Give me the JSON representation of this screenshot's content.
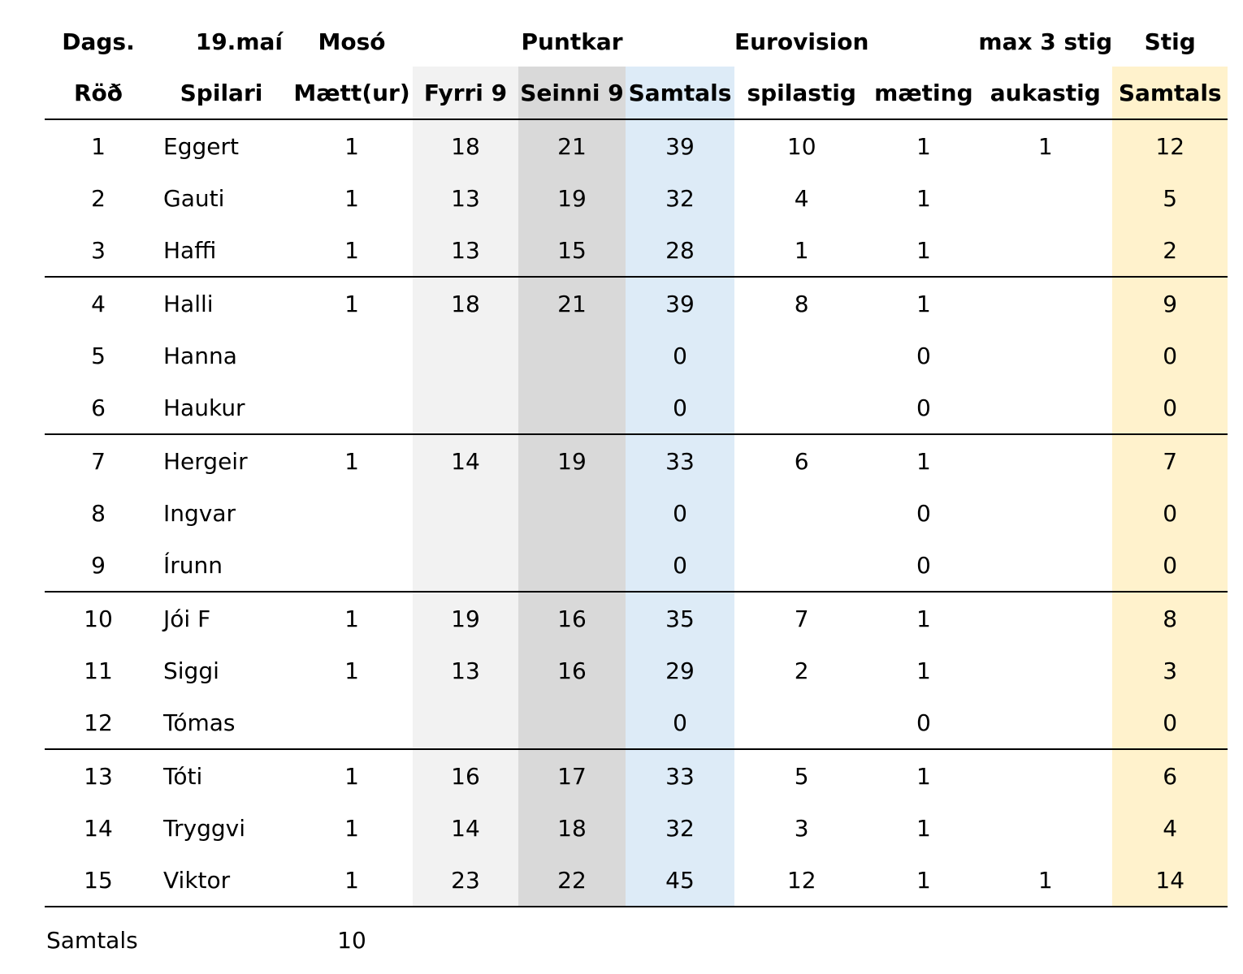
{
  "header_top": {
    "dags": "Dags.",
    "date": "19.maí",
    "venue": "Mosó",
    "puntkar": "Puntkar",
    "eurovision": "Eurovision",
    "max": "max 3 stig",
    "stig": "Stig"
  },
  "header": {
    "rod": "Röð",
    "spilari": "Spilari",
    "maett": "Mætt(ur)",
    "fyrri": "Fyrri 9",
    "seinni": "Seinni 9",
    "samtals": "Samtals",
    "spilastig": "spilastig",
    "maeting": "mæting",
    "aukastig": "aukastig",
    "stig_samtals": "Samtals"
  },
  "rows": [
    {
      "rod": "1",
      "name": "Eggert",
      "maett": "1",
      "fyrri": "18",
      "seinni": "21",
      "samtals": "39",
      "spilastig": "10",
      "maeting": "1",
      "aukastig": "1",
      "stig": "12"
    },
    {
      "rod": "2",
      "name": "Gauti",
      "maett": "1",
      "fyrri": "13",
      "seinni": "19",
      "samtals": "32",
      "spilastig": "4",
      "maeting": "1",
      "aukastig": "",
      "stig": "5"
    },
    {
      "rod": "3",
      "name": "Haffi",
      "maett": "1",
      "fyrri": "13",
      "seinni": "15",
      "samtals": "28",
      "spilastig": "1",
      "maeting": "1",
      "aukastig": "",
      "stig": "2"
    },
    {
      "rod": "4",
      "name": "Halli",
      "maett": "1",
      "fyrri": "18",
      "seinni": "21",
      "samtals": "39",
      "spilastig": "8",
      "maeting": "1",
      "aukastig": "",
      "stig": "9"
    },
    {
      "rod": "5",
      "name": "Hanna",
      "maett": "",
      "fyrri": "",
      "seinni": "",
      "samtals": "0",
      "spilastig": "",
      "maeting": "0",
      "aukastig": "",
      "stig": "0"
    },
    {
      "rod": "6",
      "name": "Haukur",
      "maett": "",
      "fyrri": "",
      "seinni": "",
      "samtals": "0",
      "spilastig": "",
      "maeting": "0",
      "aukastig": "",
      "stig": "0"
    },
    {
      "rod": "7",
      "name": "Hergeir",
      "maett": "1",
      "fyrri": "14",
      "seinni": "19",
      "samtals": "33",
      "spilastig": "6",
      "maeting": "1",
      "aukastig": "",
      "stig": "7"
    },
    {
      "rod": "8",
      "name": "Ingvar",
      "maett": "",
      "fyrri": "",
      "seinni": "",
      "samtals": "0",
      "spilastig": "",
      "maeting": "0",
      "aukastig": "",
      "stig": "0"
    },
    {
      "rod": "9",
      "name": "Írunn",
      "maett": "",
      "fyrri": "",
      "seinni": "",
      "samtals": "0",
      "spilastig": "",
      "maeting": "0",
      "aukastig": "",
      "stig": "0"
    },
    {
      "rod": "10",
      "name": "Jói F",
      "maett": "1",
      "fyrri": "19",
      "seinni": "16",
      "samtals": "35",
      "spilastig": "7",
      "maeting": "1",
      "aukastig": "",
      "stig": "8"
    },
    {
      "rod": "11",
      "name": "Siggi",
      "maett": "1",
      "fyrri": "13",
      "seinni": "16",
      "samtals": "29",
      "spilastig": "2",
      "maeting": "1",
      "aukastig": "",
      "stig": "3"
    },
    {
      "rod": "12",
      "name": "Tómas",
      "maett": "",
      "fyrri": "",
      "seinni": "",
      "samtals": "0",
      "spilastig": "",
      "maeting": "0",
      "aukastig": "",
      "stig": "0"
    },
    {
      "rod": "13",
      "name": "Tóti",
      "maett": "1",
      "fyrri": "16",
      "seinni": "17",
      "samtals": "33",
      "spilastig": "5",
      "maeting": "1",
      "aukastig": "",
      "stig": "6"
    },
    {
      "rod": "14",
      "name": "Tryggvi",
      "maett": "1",
      "fyrri": "14",
      "seinni": "18",
      "samtals": "32",
      "spilastig": "3",
      "maeting": "1",
      "aukastig": "",
      "stig": "4"
    },
    {
      "rod": "15",
      "name": "Viktor",
      "maett": "1",
      "fyrri": "23",
      "seinni": "22",
      "samtals": "45",
      "spilastig": "12",
      "maeting": "1",
      "aukastig": "1",
      "stig": "14"
    }
  ],
  "total": {
    "label": "Samtals",
    "maett": "10"
  },
  "colors": {
    "fyrri_fill": "#f2f2f2",
    "seinni_fill": "#d9d9d9",
    "samtals_fill": "#ddebf7",
    "stig_fill": "#fff2cc",
    "rule": "#000000"
  }
}
